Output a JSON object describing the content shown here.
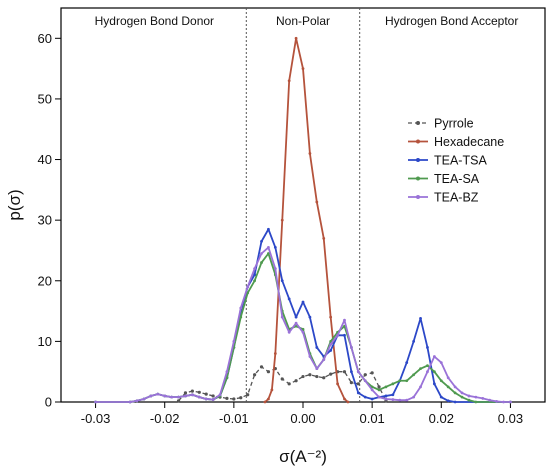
{
  "chart_data": {
    "type": "line",
    "xlabel": "σ(A⁻²)",
    "ylabel": "p(σ)",
    "xlim": [
      -0.035,
      0.035
    ],
    "ylim": [
      0,
      65
    ],
    "xticks": [
      -0.03,
      -0.02,
      -0.01,
      0.0,
      0.01,
      0.02,
      0.03
    ],
    "xtick_labels": [
      "-0.03",
      "-0.02",
      "-0.01",
      "0.00",
      "0.01",
      "0.02",
      "0.03"
    ],
    "yticks": [
      0,
      10,
      20,
      30,
      40,
      50,
      60
    ],
    "ytick_labels": [
      "0",
      "10",
      "20",
      "30",
      "40",
      "50",
      "60"
    ],
    "dividers": [
      -0.0082,
      0.0082
    ],
    "regions": [
      {
        "label": "Hydrogen Bond Donor",
        "x": -0.0215
      },
      {
        "label": "Non-Polar",
        "x": 0.0
      },
      {
        "label": "Hydrogen Bond Acceptor",
        "x": 0.0215
      }
    ],
    "legend_position": "right",
    "series": [
      {
        "name": "Pyrrole",
        "color": "#555555",
        "dashed": true,
        "points": [
          [
            -0.018,
            0.2
          ],
          [
            -0.017,
            1.5
          ],
          [
            -0.016,
            1.8
          ],
          [
            -0.015,
            1.6
          ],
          [
            -0.014,
            1.3
          ],
          [
            -0.013,
            1.0
          ],
          [
            -0.012,
            0.8
          ],
          [
            -0.011,
            0.6
          ],
          [
            -0.01,
            0.5
          ],
          [
            -0.009,
            0.7
          ],
          [
            -0.008,
            1.2
          ],
          [
            -0.007,
            4.5
          ],
          [
            -0.006,
            5.8
          ],
          [
            -0.005,
            5.0
          ],
          [
            -0.004,
            5.5
          ],
          [
            -0.003,
            3.8
          ],
          [
            -0.002,
            3.0
          ],
          [
            -0.001,
            3.5
          ],
          [
            0.0,
            4.2
          ],
          [
            0.001,
            4.5
          ],
          [
            0.002,
            4.2
          ],
          [
            0.003,
            4.0
          ],
          [
            0.004,
            4.6
          ],
          [
            0.005,
            5.0
          ],
          [
            0.006,
            5.0
          ],
          [
            0.007,
            3.2
          ],
          [
            0.008,
            3.0
          ],
          [
            0.009,
            4.5
          ],
          [
            0.01,
            4.8
          ],
          [
            0.011,
            2.5
          ],
          [
            0.012,
            0.2
          ]
        ]
      },
      {
        "name": "Hexadecane",
        "color": "#b5533c",
        "dashed": false,
        "points": [
          [
            -0.0055,
            0
          ],
          [
            -0.005,
            0.5
          ],
          [
            -0.0045,
            2
          ],
          [
            -0.004,
            8
          ],
          [
            -0.003,
            30
          ],
          [
            -0.002,
            53
          ],
          [
            -0.001,
            60
          ],
          [
            0.0,
            55
          ],
          [
            0.001,
            41
          ],
          [
            0.002,
            33
          ],
          [
            0.003,
            27
          ],
          [
            0.004,
            14
          ],
          [
            0.005,
            3
          ],
          [
            0.006,
            0.5
          ],
          [
            0.0065,
            0
          ]
        ]
      },
      {
        "name": "TEA-TSA",
        "color": "#2c48c8",
        "dashed": false,
        "points": [
          [
            -0.03,
            0
          ],
          [
            -0.025,
            0
          ],
          [
            -0.024,
            0.2
          ],
          [
            -0.023,
            0.5
          ],
          [
            -0.022,
            1
          ],
          [
            -0.021,
            1.3
          ],
          [
            -0.02,
            1.0
          ],
          [
            -0.019,
            0.8
          ],
          [
            -0.018,
            0.8
          ],
          [
            -0.017,
            1.0
          ],
          [
            -0.016,
            1.2
          ],
          [
            -0.015,
            0.8
          ],
          [
            -0.014,
            0.5
          ],
          [
            -0.013,
            0.4
          ],
          [
            -0.012,
            1.0
          ],
          [
            -0.011,
            4
          ],
          [
            -0.01,
            9
          ],
          [
            -0.009,
            15
          ],
          [
            -0.008,
            19
          ],
          [
            -0.007,
            21
          ],
          [
            -0.006,
            26.5
          ],
          [
            -0.005,
            28.5
          ],
          [
            -0.004,
            25.5
          ],
          [
            -0.003,
            20
          ],
          [
            -0.002,
            17
          ],
          [
            -0.001,
            14
          ],
          [
            0.0,
            16.5
          ],
          [
            0.001,
            14
          ],
          [
            0.002,
            9
          ],
          [
            0.003,
            7.5
          ],
          [
            0.004,
            8.5
          ],
          [
            0.005,
            11
          ],
          [
            0.006,
            11
          ],
          [
            0.007,
            5
          ],
          [
            0.008,
            1.5
          ],
          [
            0.009,
            0.8
          ],
          [
            0.01,
            0.5
          ],
          [
            0.011,
            0.8
          ],
          [
            0.012,
            1.0
          ],
          [
            0.013,
            1.2
          ],
          [
            0.014,
            3.5
          ],
          [
            0.015,
            6.5
          ],
          [
            0.016,
            10
          ],
          [
            0.017,
            13.8
          ],
          [
            0.018,
            9
          ],
          [
            0.019,
            3
          ],
          [
            0.02,
            0.8
          ],
          [
            0.021,
            0.2
          ],
          [
            0.022,
            0
          ],
          [
            0.03,
            0
          ]
        ]
      },
      {
        "name": "TEA-SA",
        "color": "#4f9a4f",
        "dashed": false,
        "points": [
          [
            -0.03,
            0
          ],
          [
            -0.025,
            0
          ],
          [
            -0.024,
            0.2
          ],
          [
            -0.023,
            0.5
          ],
          [
            -0.022,
            1
          ],
          [
            -0.021,
            1.3
          ],
          [
            -0.02,
            1.0
          ],
          [
            -0.019,
            0.8
          ],
          [
            -0.018,
            0.8
          ],
          [
            -0.017,
            1.0
          ],
          [
            -0.016,
            1.2
          ],
          [
            -0.015,
            0.8
          ],
          [
            -0.014,
            0.5
          ],
          [
            -0.013,
            0.4
          ],
          [
            -0.012,
            1.0
          ],
          [
            -0.011,
            4
          ],
          [
            -0.01,
            9
          ],
          [
            -0.009,
            14
          ],
          [
            -0.008,
            18
          ],
          [
            -0.007,
            20
          ],
          [
            -0.006,
            23
          ],
          [
            -0.005,
            24.5
          ],
          [
            -0.004,
            21
          ],
          [
            -0.003,
            15
          ],
          [
            -0.002,
            12
          ],
          [
            -0.001,
            12.5
          ],
          [
            0.0,
            12
          ],
          [
            0.001,
            8
          ],
          [
            0.002,
            5.5
          ],
          [
            0.003,
            7
          ],
          [
            0.004,
            10
          ],
          [
            0.005,
            11.5
          ],
          [
            0.006,
            12.5
          ],
          [
            0.007,
            9
          ],
          [
            0.008,
            5
          ],
          [
            0.009,
            3.5
          ],
          [
            0.01,
            2.5
          ],
          [
            0.011,
            2
          ],
          [
            0.012,
            2.5
          ],
          [
            0.013,
            3
          ],
          [
            0.014,
            3.5
          ],
          [
            0.015,
            3.5
          ],
          [
            0.016,
            4.5
          ],
          [
            0.017,
            5.5
          ],
          [
            0.018,
            6
          ],
          [
            0.019,
            5
          ],
          [
            0.02,
            3.5
          ],
          [
            0.021,
            2.5
          ],
          [
            0.022,
            1.5
          ],
          [
            0.023,
            0.8
          ],
          [
            0.024,
            0.3
          ],
          [
            0.025,
            0
          ],
          [
            0.03,
            0
          ]
        ]
      },
      {
        "name": "TEA-BZ",
        "color": "#9a72d8",
        "dashed": false,
        "points": [
          [
            -0.03,
            0
          ],
          [
            -0.025,
            0
          ],
          [
            -0.024,
            0.2
          ],
          [
            -0.023,
            0.5
          ],
          [
            -0.022,
            1
          ],
          [
            -0.021,
            1.3
          ],
          [
            -0.02,
            1.0
          ],
          [
            -0.019,
            0.8
          ],
          [
            -0.018,
            0.8
          ],
          [
            -0.017,
            1.0
          ],
          [
            -0.016,
            1.2
          ],
          [
            -0.015,
            0.8
          ],
          [
            -0.014,
            0.5
          ],
          [
            -0.013,
            0.4
          ],
          [
            -0.012,
            1.2
          ],
          [
            -0.011,
            5
          ],
          [
            -0.01,
            10
          ],
          [
            -0.009,
            15.5
          ],
          [
            -0.008,
            19
          ],
          [
            -0.007,
            22
          ],
          [
            -0.006,
            24.5
          ],
          [
            -0.005,
            25.5
          ],
          [
            -0.004,
            22
          ],
          [
            -0.003,
            14
          ],
          [
            -0.002,
            11.5
          ],
          [
            -0.001,
            13
          ],
          [
            0.0,
            11.5
          ],
          [
            0.001,
            7.5
          ],
          [
            0.002,
            5.5
          ],
          [
            0.003,
            7
          ],
          [
            0.004,
            9.5
          ],
          [
            0.005,
            11
          ],
          [
            0.006,
            13.5
          ],
          [
            0.007,
            9
          ],
          [
            0.008,
            5
          ],
          [
            0.009,
            3.5
          ],
          [
            0.01,
            2
          ],
          [
            0.011,
            0.8
          ],
          [
            0.012,
            0.5
          ],
          [
            0.013,
            0.4
          ],
          [
            0.014,
            0.3
          ],
          [
            0.015,
            0.3
          ],
          [
            0.016,
            0.8
          ],
          [
            0.017,
            2.5
          ],
          [
            0.018,
            5
          ],
          [
            0.019,
            7.5
          ],
          [
            0.02,
            6.5
          ],
          [
            0.021,
            4
          ],
          [
            0.022,
            2.5
          ],
          [
            0.023,
            1.5
          ],
          [
            0.024,
            1.0
          ],
          [
            0.025,
            0.8
          ],
          [
            0.026,
            0.6
          ],
          [
            0.027,
            0.3
          ],
          [
            0.028,
            0.1
          ],
          [
            0.029,
            0
          ],
          [
            0.03,
            0
          ]
        ]
      }
    ]
  }
}
